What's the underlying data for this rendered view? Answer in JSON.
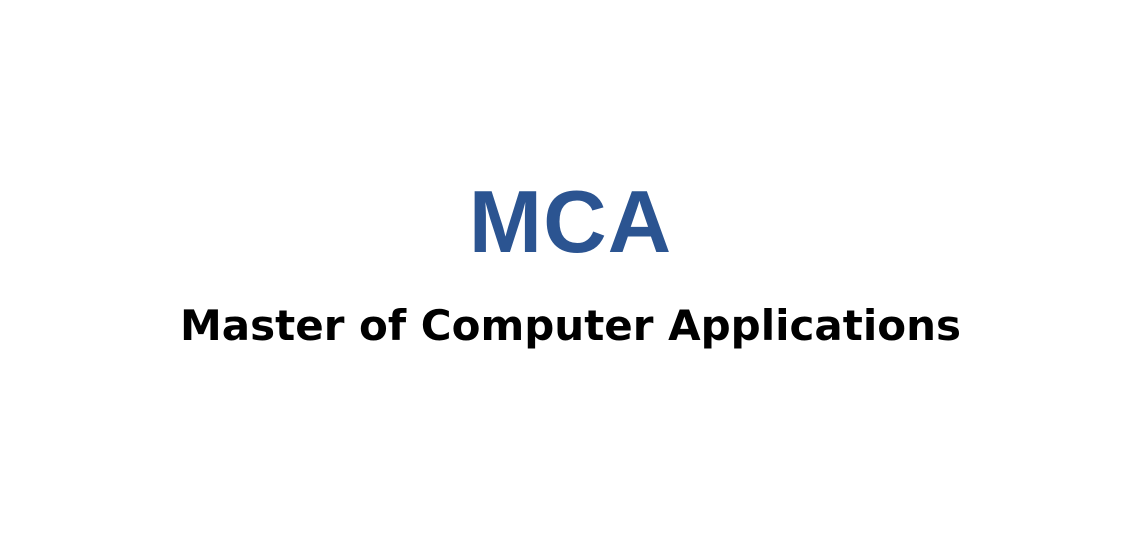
{
  "heading": {
    "acronym": "MCA",
    "full_name": "Master of Computer Applications"
  },
  "colors": {
    "background": "#ffffff",
    "acronym": "#2b5491",
    "full_name": "#000000"
  }
}
